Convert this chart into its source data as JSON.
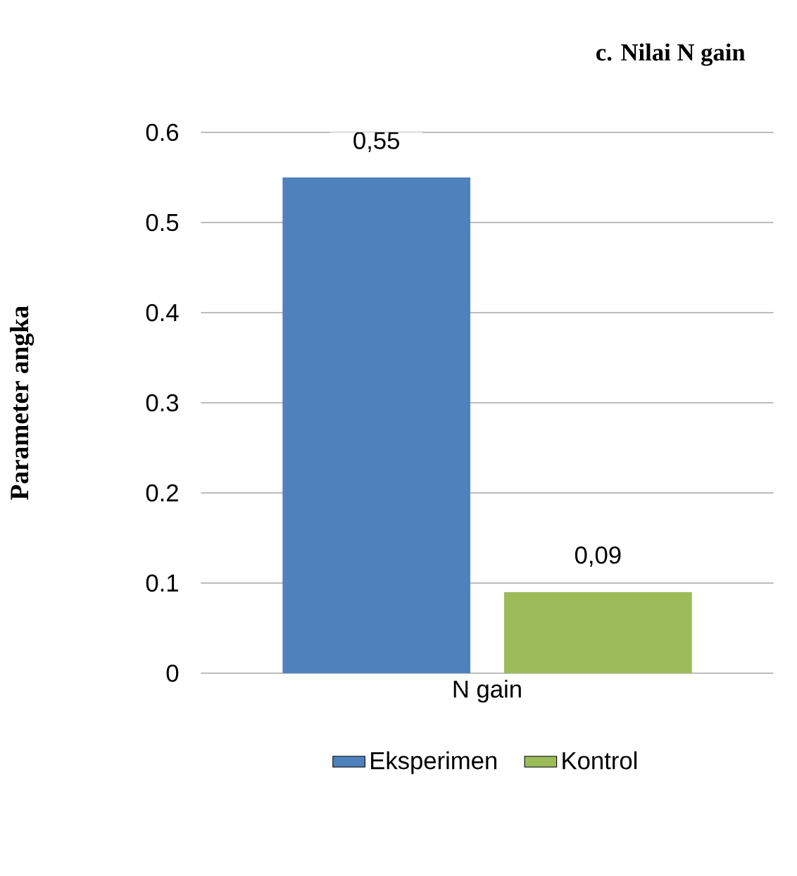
{
  "chart_data": {
    "type": "bar",
    "title": "c. Nilai N gain",
    "ylabel": "Parameter angka",
    "categories": [
      "N gain"
    ],
    "series": [
      {
        "name": "Eksperimen",
        "color": "#4f81bd",
        "values": [
          0.55
        ],
        "value_labels": [
          "0,55"
        ]
      },
      {
        "name": "Kontrol",
        "color": "#9bbb59",
        "values": [
          0.09
        ],
        "value_labels": [
          "0,09"
        ]
      }
    ],
    "ylim": [
      0,
      0.6
    ],
    "yticks": [
      0,
      0.1,
      0.2,
      0.3,
      0.4,
      0.5,
      0.6
    ],
    "grid": "y",
    "legend": "bottom"
  }
}
